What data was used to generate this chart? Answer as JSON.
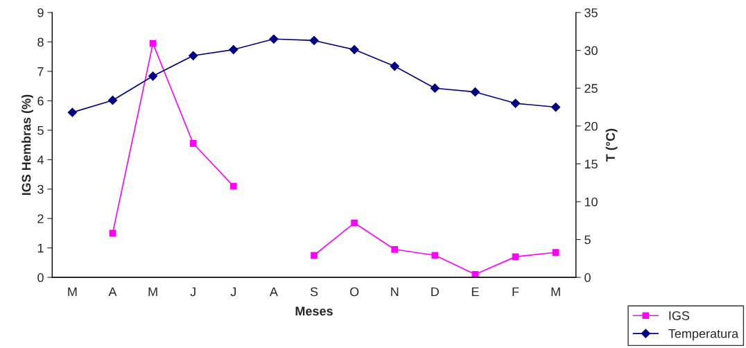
{
  "chart_data": {
    "type": "line",
    "xlabel": "Meses",
    "ylabel": "IGS Hembras (%)",
    "y2label": "T (°C)",
    "categories": [
      "M",
      "A",
      "M",
      "J",
      "J",
      "A",
      "S",
      "O",
      "N",
      "D",
      "E",
      "F",
      "M"
    ],
    "series": [
      {
        "name": "IGS",
        "color": "#ff00ff",
        "marker": "square",
        "values": [
          null,
          1.5,
          7.95,
          4.55,
          3.1,
          null,
          0.75,
          1.85,
          0.95,
          0.75,
          0.1,
          0.7,
          0.85
        ]
      },
      {
        "name": "Temperatura",
        "color": "#000080",
        "marker": "diamond",
        "axis": "y2",
        "values": [
          21.8,
          23.4,
          26.6,
          29.3,
          30.1,
          31.5,
          31.3,
          30.1,
          27.9,
          25.0,
          24.5,
          23.0,
          22.5
        ]
      }
    ],
    "ylim": [
      0,
      9
    ],
    "yticks": [
      0,
      1,
      2,
      3,
      4,
      5,
      6,
      7,
      8,
      9
    ],
    "y2lim": [
      0,
      35
    ],
    "y2ticks": [
      0,
      5,
      10,
      15,
      20,
      25,
      30,
      35
    ],
    "grid": false,
    "legend": "bottom right"
  }
}
